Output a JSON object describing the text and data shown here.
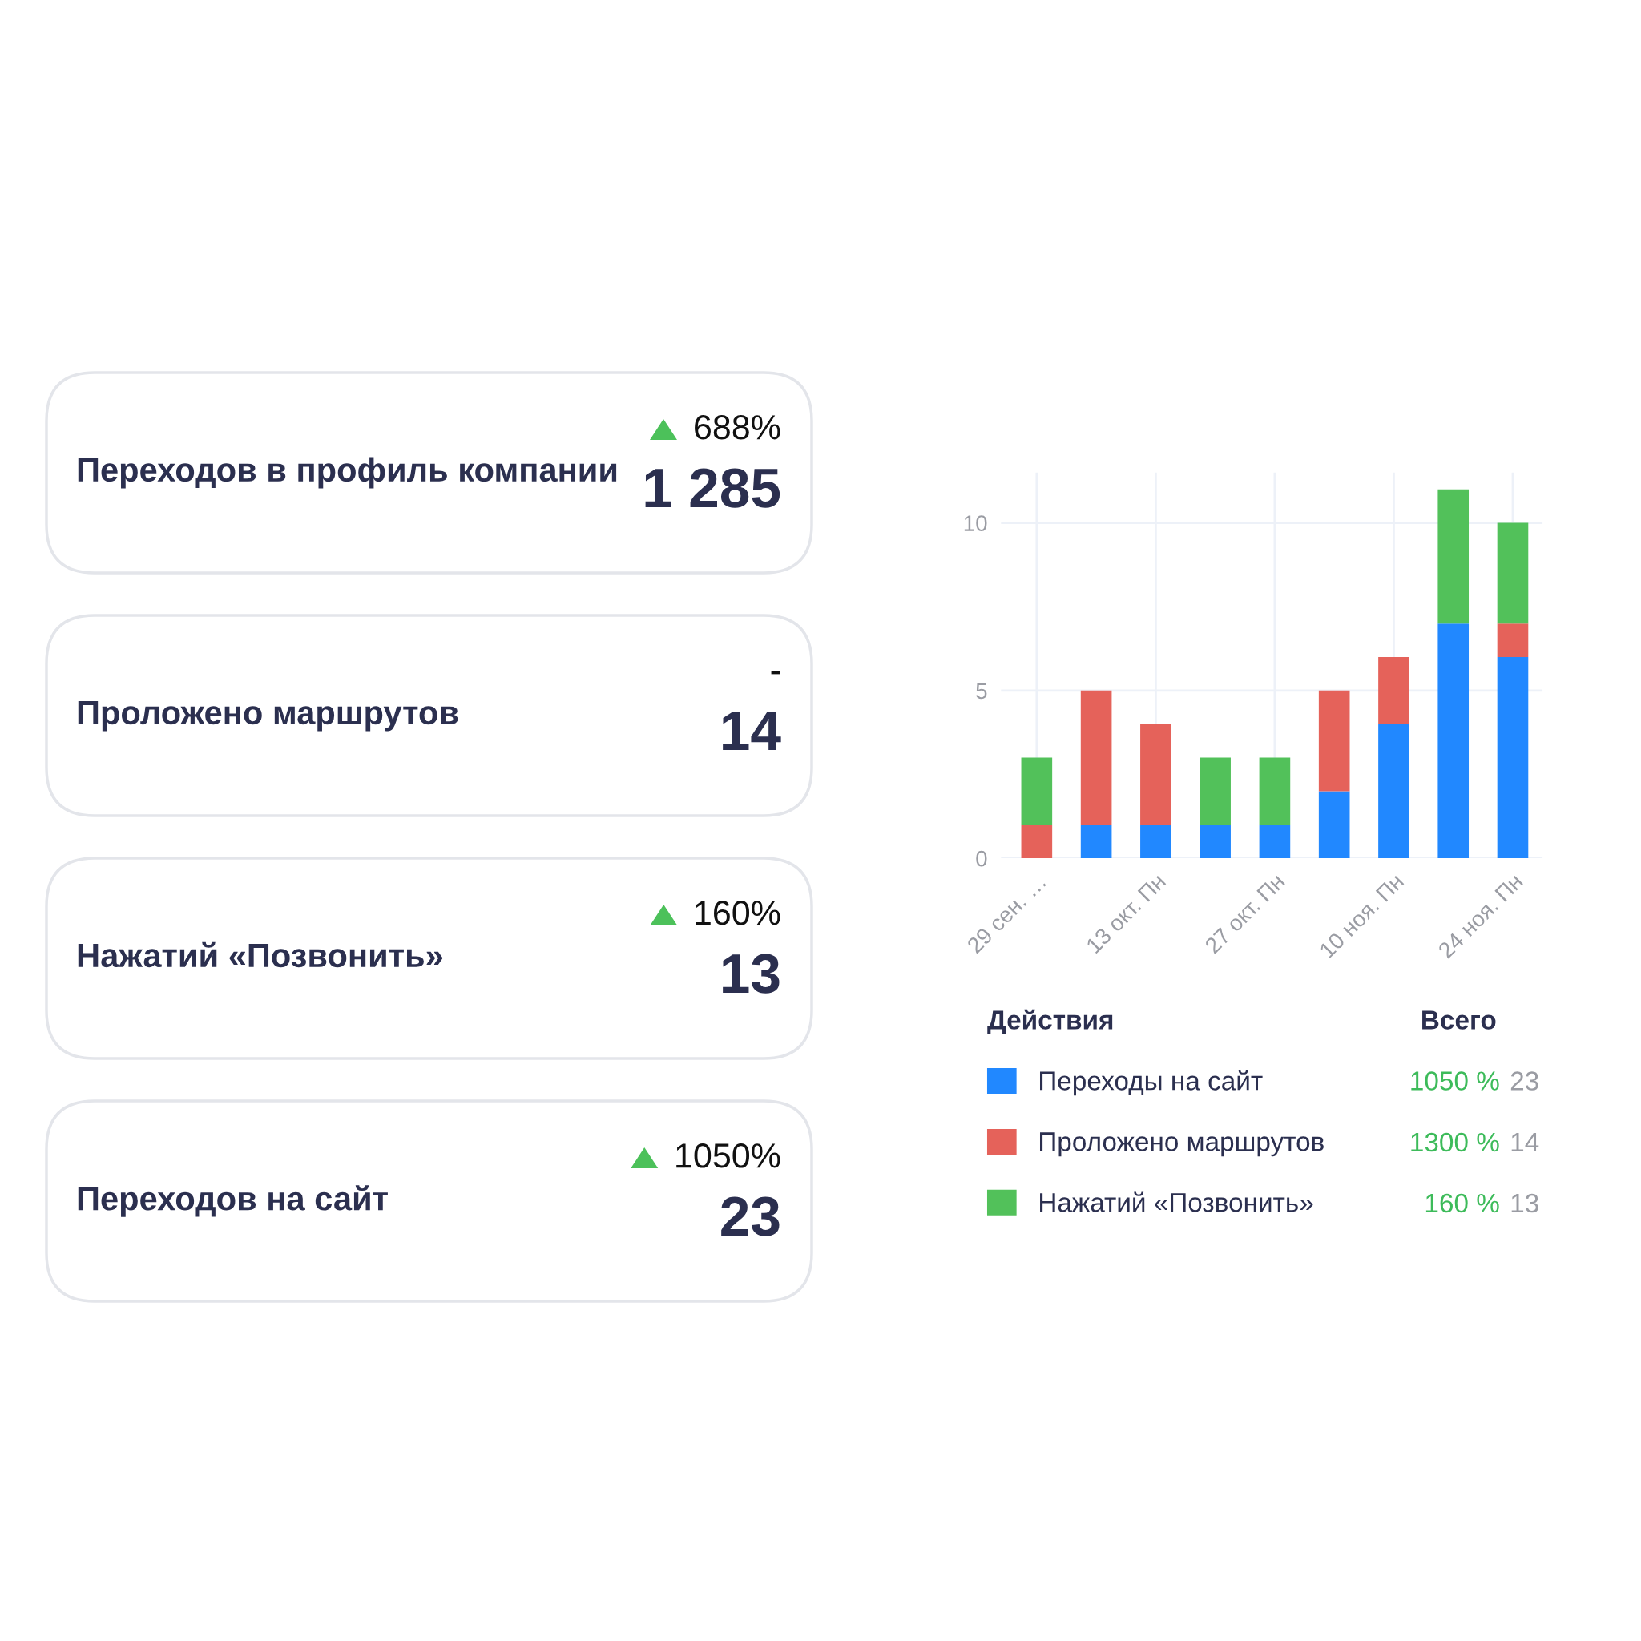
{
  "chart_data": [
    {
      "type": "other",
      "annotations": [
        "Переходов в профиль компании",
        "688%",
        "1 285",
        "Проложено маршрутов",
        "-",
        "14",
        "Нажатий «Позвонить»",
        "160%",
        "13",
        "Переходов на сайт",
        "1050%",
        "23"
      ]
    },
    {
      "type": "bar",
      "stacked": true,
      "categories": [
        "29 сен. …",
        null,
        "13 окт. Пн",
        null,
        "27 окт. Пн",
        null,
        "10 ноя. Пн",
        null,
        "24 ноя. Пн"
      ],
      "series": [
        {
          "name": "Переходы на сайт",
          "color": "#2188ff",
          "values": [
            0,
            1,
            1,
            1,
            1,
            2,
            4,
            7,
            6
          ]
        },
        {
          "name": "Проложено маршрутов",
          "color": "#e5625a",
          "values": [
            1,
            4,
            3,
            0,
            0,
            3,
            2,
            0,
            1
          ]
        },
        {
          "name": "Нажатий «Позвонить»",
          "color": "#52c15a",
          "values": [
            2,
            0,
            0,
            2,
            2,
            0,
            0,
            4,
            3
          ]
        }
      ],
      "ylim": [
        0,
        11.5
      ],
      "yticks": [
        0,
        5,
        10
      ],
      "grid": true,
      "legend": "bottom",
      "legend_title": "Действия",
      "annotations": [
        "Всего",
        "1050 %",
        "23",
        "1300 %",
        "14",
        "160 %",
        "13"
      ]
    }
  ]
}
